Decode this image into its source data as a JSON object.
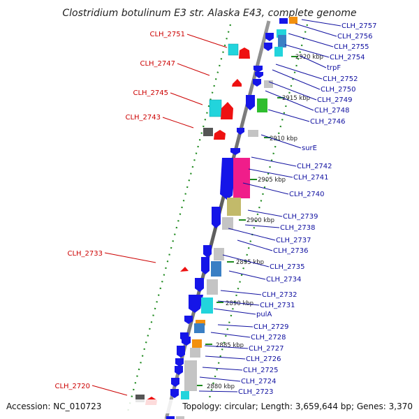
{
  "title": "Clostridium botulinum E3 str. Alaska E43, complete genome",
  "accession": "Accession: NC_010723",
  "topology": "Topology: circular; Length: 3,659,644 bp; Genes: 3,370",
  "left_labels": [
    "CLH_2751",
    "CLH_2747",
    "CLH_2745",
    "CLH_2743",
    "CLH_2733",
    "CLH_2720"
  ],
  "right_labels": [
    "CLH_2757",
    "CLH_2756",
    "CLH_2755",
    "CLH_2754",
    "trpF",
    "CLH_2752",
    "CLH_2750",
    "CLH_2749",
    "CLH_2748",
    "CLH_2746",
    "surE",
    "CLH_2742",
    "CLH_2741",
    "CLH_2740",
    "CLH_2739",
    "CLH_2738",
    "CLH_2737",
    "CLH_2736",
    "CLH_2735",
    "CLH_2734",
    "CLH_2732",
    "CLH_2731",
    "pulA",
    "CLH_2729",
    "CLH_2728",
    "CLH_2727",
    "CLH_2726",
    "CLH_2725",
    "CLH_2724",
    "CLH_2723"
  ],
  "kbp_labels": [
    "2920 kbp",
    "2915 kbp",
    "2910 kbp",
    "2905 kbp",
    "2900 kbp",
    "2895 kbp",
    "2890 kbp",
    "2885 kbp",
    "2880 kbp"
  ],
  "colors": {
    "forward": "#1515e8",
    "reverse": "#ee1111",
    "cyan": "#22d4dc",
    "steel": "#3a7fc4",
    "gray": "#c4c4c4",
    "dark": "#555555",
    "magenta": "#f01d8a",
    "olive": "#c2ba6a",
    "green": "#2fbd2f",
    "orange": "#f2900e",
    "left_label": "#cc0000",
    "right_label": "#1010a0",
    "dotted_guide": "#1f8a1f"
  }
}
